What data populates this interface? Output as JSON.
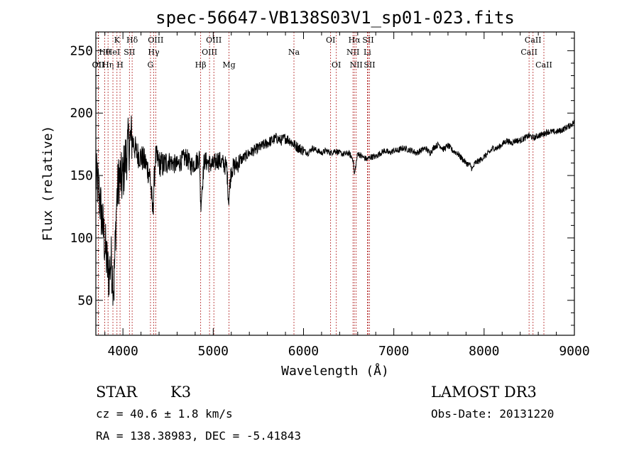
{
  "chart_data": {
    "type": "line",
    "title": "spec-56647-VB138S03V1_sp01-023.fits",
    "xlabel": "Wavelength (Å)",
    "ylabel": "Flux (relative)",
    "xlim": [
      3700,
      9000
    ],
    "ylim": [
      22,
      265
    ],
    "x_ticks": [
      4000,
      5000,
      6000,
      7000,
      8000,
      9000
    ],
    "y_ticks": [
      50,
      100,
      150,
      200,
      250
    ],
    "series": [
      {
        "name": "spectrum",
        "x": [
          3700,
          3730,
          3760,
          3800,
          3840,
          3870,
          3900,
          3930,
          3960,
          3990,
          4020,
          4060,
          4100,
          4150,
          4200,
          4250,
          4300,
          4330,
          4360,
          4400,
          4450,
          4500,
          4550,
          4600,
          4650,
          4700,
          4750,
          4800,
          4850,
          4860,
          4900,
          4950,
          5000,
          5050,
          5100,
          5150,
          5170,
          5200,
          5250,
          5300,
          5350,
          5400,
          5450,
          5500,
          5550,
          5600,
          5650,
          5700,
          5750,
          5800,
          5850,
          5890,
          5950,
          6000,
          6050,
          6100,
          6150,
          6200,
          6250,
          6300,
          6350,
          6400,
          6450,
          6500,
          6550,
          6563,
          6600,
          6650,
          6700,
          6750,
          6800,
          6850,
          6900,
          6950,
          7000,
          7050,
          7100,
          7150,
          7200,
          7250,
          7300,
          7350,
          7400,
          7450,
          7500,
          7550,
          7600,
          7650,
          7700,
          7750,
          7800,
          7850,
          7870,
          7900,
          7950,
          8000,
          8050,
          8100,
          8150,
          8200,
          8250,
          8300,
          8350,
          8400,
          8450,
          8500,
          8550,
          8600,
          8650,
          8700,
          8750,
          8800,
          8850,
          8900,
          8950,
          9000
        ],
        "values": [
          148,
          140,
          120,
          95,
          70,
          82,
          60,
          130,
          150,
          145,
          160,
          175,
          180,
          168,
          165,
          160,
          150,
          120,
          165,
          160,
          158,
          162,
          160,
          158,
          162,
          165,
          158,
          160,
          165,
          125,
          162,
          160,
          158,
          163,
          160,
          157,
          130,
          155,
          158,
          162,
          165,
          168,
          170,
          172,
          174,
          176,
          178,
          180,
          178,
          180,
          178,
          175,
          172,
          170,
          168,
          172,
          170,
          168,
          170,
          168,
          170,
          168,
          167,
          168,
          163,
          150,
          168,
          165,
          163,
          165,
          165,
          168,
          170,
          168,
          170,
          170,
          172,
          171,
          170,
          168,
          170,
          172,
          168,
          173,
          175,
          171,
          174,
          170,
          168,
          164,
          160,
          158,
          155,
          160,
          162,
          165,
          168,
          172,
          172,
          175,
          178,
          176,
          178,
          178,
          180,
          182,
          180,
          182,
          183,
          185,
          185,
          185,
          186,
          188,
          190,
          193
        ]
      }
    ],
    "line_markers": [
      {
        "label": "OII",
        "x": 3727,
        "row": 2
      },
      {
        "label": "Hθ",
        "x": 3798,
        "row": 1
      },
      {
        "label": "Hη",
        "x": 3835,
        "row": 2
      },
      {
        "label": "OII",
        "x": 3727,
        "row": 2
      },
      {
        "label": "HeI",
        "x": 3889,
        "row": 1
      },
      {
        "label": "K",
        "x": 3934,
        "row": 0
      },
      {
        "label": "H",
        "x": 3968,
        "row": 2
      },
      {
        "label": "SII",
        "x": 4072,
        "row": 1
      },
      {
        "label": "Hδ",
        "x": 4102,
        "row": 0
      },
      {
        "label": "G",
        "x": 4305,
        "row": 2
      },
      {
        "label": "Hγ",
        "x": 4341,
        "row": 1
      },
      {
        "label": "OIII",
        "x": 4363,
        "row": 0
      },
      {
        "label": "Hβ",
        "x": 4861,
        "row": 2
      },
      {
        "label": "OIII",
        "x": 4959,
        "row": 1
      },
      {
        "label": "OIII",
        "x": 5007,
        "row": 0
      },
      {
        "label": "Mg",
        "x": 5175,
        "row": 2
      },
      {
        "label": "Na",
        "x": 5894,
        "row": 1
      },
      {
        "label": "OI",
        "x": 6300,
        "row": 0
      },
      {
        "label": "OI",
        "x": 6363,
        "row": 2
      },
      {
        "label": "NII",
        "x": 6548,
        "row": 1
      },
      {
        "label": "Hα",
        "x": 6563,
        "row": 0
      },
      {
        "label": "NII",
        "x": 6583,
        "row": 2
      },
      {
        "label": "Li",
        "x": 6707,
        "row": 1
      },
      {
        "label": "SII",
        "x": 6716,
        "row": 0
      },
      {
        "label": "SII",
        "x": 6731,
        "row": 2
      },
      {
        "label": "CaII",
        "x": 8498,
        "row": 1
      },
      {
        "label": "CaII",
        "x": 8542,
        "row": 0
      },
      {
        "label": "CaII",
        "x": 8662,
        "row": 2
      }
    ],
    "marker_color": "#b22222"
  },
  "info": {
    "class_label": "STAR",
    "subclass": "K3",
    "survey": "LAMOST DR3",
    "redshift_text": "cz = 40.6 ± 1.8 km/s",
    "obs_date_text": "Obs-Date: 20131220",
    "coords_text": "RA = 138.38983, DEC =  -5.41843"
  }
}
